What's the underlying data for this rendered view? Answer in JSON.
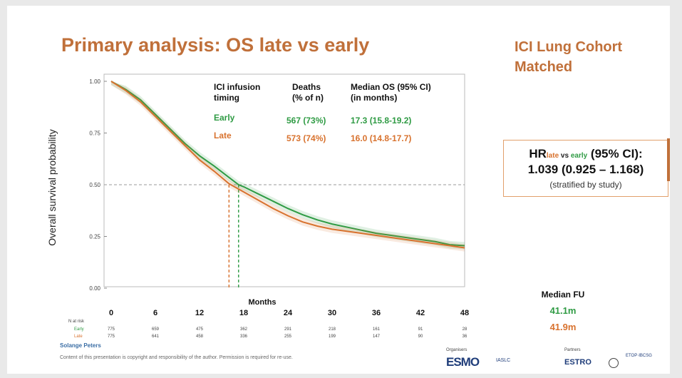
{
  "title": "Primary analysis: OS late vs early",
  "cohort": [
    "ICI Lung Cohort",
    "Matched"
  ],
  "hr": {
    "prefix": "HR",
    "sub_late": "late",
    "sub_vs": " vs ",
    "sub_early": "early",
    "suffix": " (95% CI):",
    "value": "1.039 (0.925 – 1.168)",
    "note": "(stratified by study)"
  },
  "median_fu": {
    "heading": "Median FU",
    "early": "41.1m",
    "late": "41.9m"
  },
  "author": "Solange Peters",
  "copyright": "Content of this presentation is copyright and responsibility of the author. Permission is required for re-use.",
  "logos": {
    "organisers": "Organisers",
    "partners": "Partners",
    "esmo": "ESMO",
    "iaslc": "IASLC",
    "estro": "ESTRO",
    "etop": "ETOP·IBCSG"
  },
  "colors": {
    "early": "#2f9b44",
    "late": "#d8722e",
    "accent": "#c0703a"
  },
  "chart_data": {
    "type": "line",
    "ylabel": "Overall survival probability",
    "xlabel": "Months",
    "xlim": [
      0,
      48
    ],
    "ylim": [
      0,
      1
    ],
    "yticks": [
      "0.00",
      "0.25",
      "0.50",
      "0.75",
      "1.00"
    ],
    "xticks": [
      0,
      6,
      12,
      18,
      24,
      30,
      36,
      42,
      48
    ],
    "grid": "dashed reference line at 0.50",
    "legend": {
      "headers": [
        "ICI infusion timing",
        "Deaths (% of n)",
        "Median OS (95% CI) (in months)"
      ],
      "header_lines": [
        [
          "ICI infusion",
          "timing"
        ],
        [
          "Deaths",
          "(% of n)"
        ],
        [
          "Median OS (95% CI)",
          "(in months)"
        ]
      ],
      "rows": [
        {
          "name": "Early",
          "deaths": "567 (73%)",
          "median_os": "17.3 (15.8-19.2)"
        },
        {
          "name": "Late",
          "deaths": "573 (74%)",
          "median_os": "16.0 (14.8-17.7)"
        }
      ]
    },
    "series": [
      {
        "name": "Early",
        "x": [
          0,
          2,
          4,
          6,
          8,
          10,
          12,
          14,
          16,
          17.3,
          18,
          20,
          22,
          24,
          26,
          28,
          30,
          32,
          34,
          36,
          38,
          40,
          42,
          44,
          46,
          48
        ],
        "y": [
          1.0,
          0.96,
          0.91,
          0.84,
          0.77,
          0.7,
          0.64,
          0.59,
          0.535,
          0.5,
          0.49,
          0.455,
          0.42,
          0.385,
          0.355,
          0.33,
          0.31,
          0.295,
          0.28,
          0.265,
          0.255,
          0.245,
          0.235,
          0.225,
          0.21,
          0.205
        ]
      },
      {
        "name": "Late",
        "x": [
          0,
          2,
          4,
          6,
          8,
          10,
          12,
          14,
          16,
          18,
          20,
          22,
          24,
          26,
          28,
          30,
          32,
          34,
          36,
          38,
          40,
          42,
          44,
          46,
          48
        ],
        "y": [
          1.0,
          0.955,
          0.9,
          0.83,
          0.76,
          0.69,
          0.62,
          0.565,
          0.505,
          0.465,
          0.425,
          0.385,
          0.35,
          0.32,
          0.3,
          0.285,
          0.275,
          0.265,
          0.255,
          0.245,
          0.235,
          0.225,
          0.215,
          0.205,
          0.195
        ]
      }
    ],
    "median_marks": [
      {
        "name": "Early",
        "x": 17.3
      },
      {
        "name": "Late",
        "x": 16.0
      }
    ],
    "risk_table": {
      "label": "N at risk",
      "rows": [
        {
          "name": "Early",
          "values": [
            775,
            659,
            475,
            362,
            291,
            218,
            161,
            91,
            28
          ]
        },
        {
          "name": "Late",
          "values": [
            775,
            641,
            458,
            336,
            255,
            199,
            147,
            90,
            36
          ]
        }
      ]
    }
  }
}
